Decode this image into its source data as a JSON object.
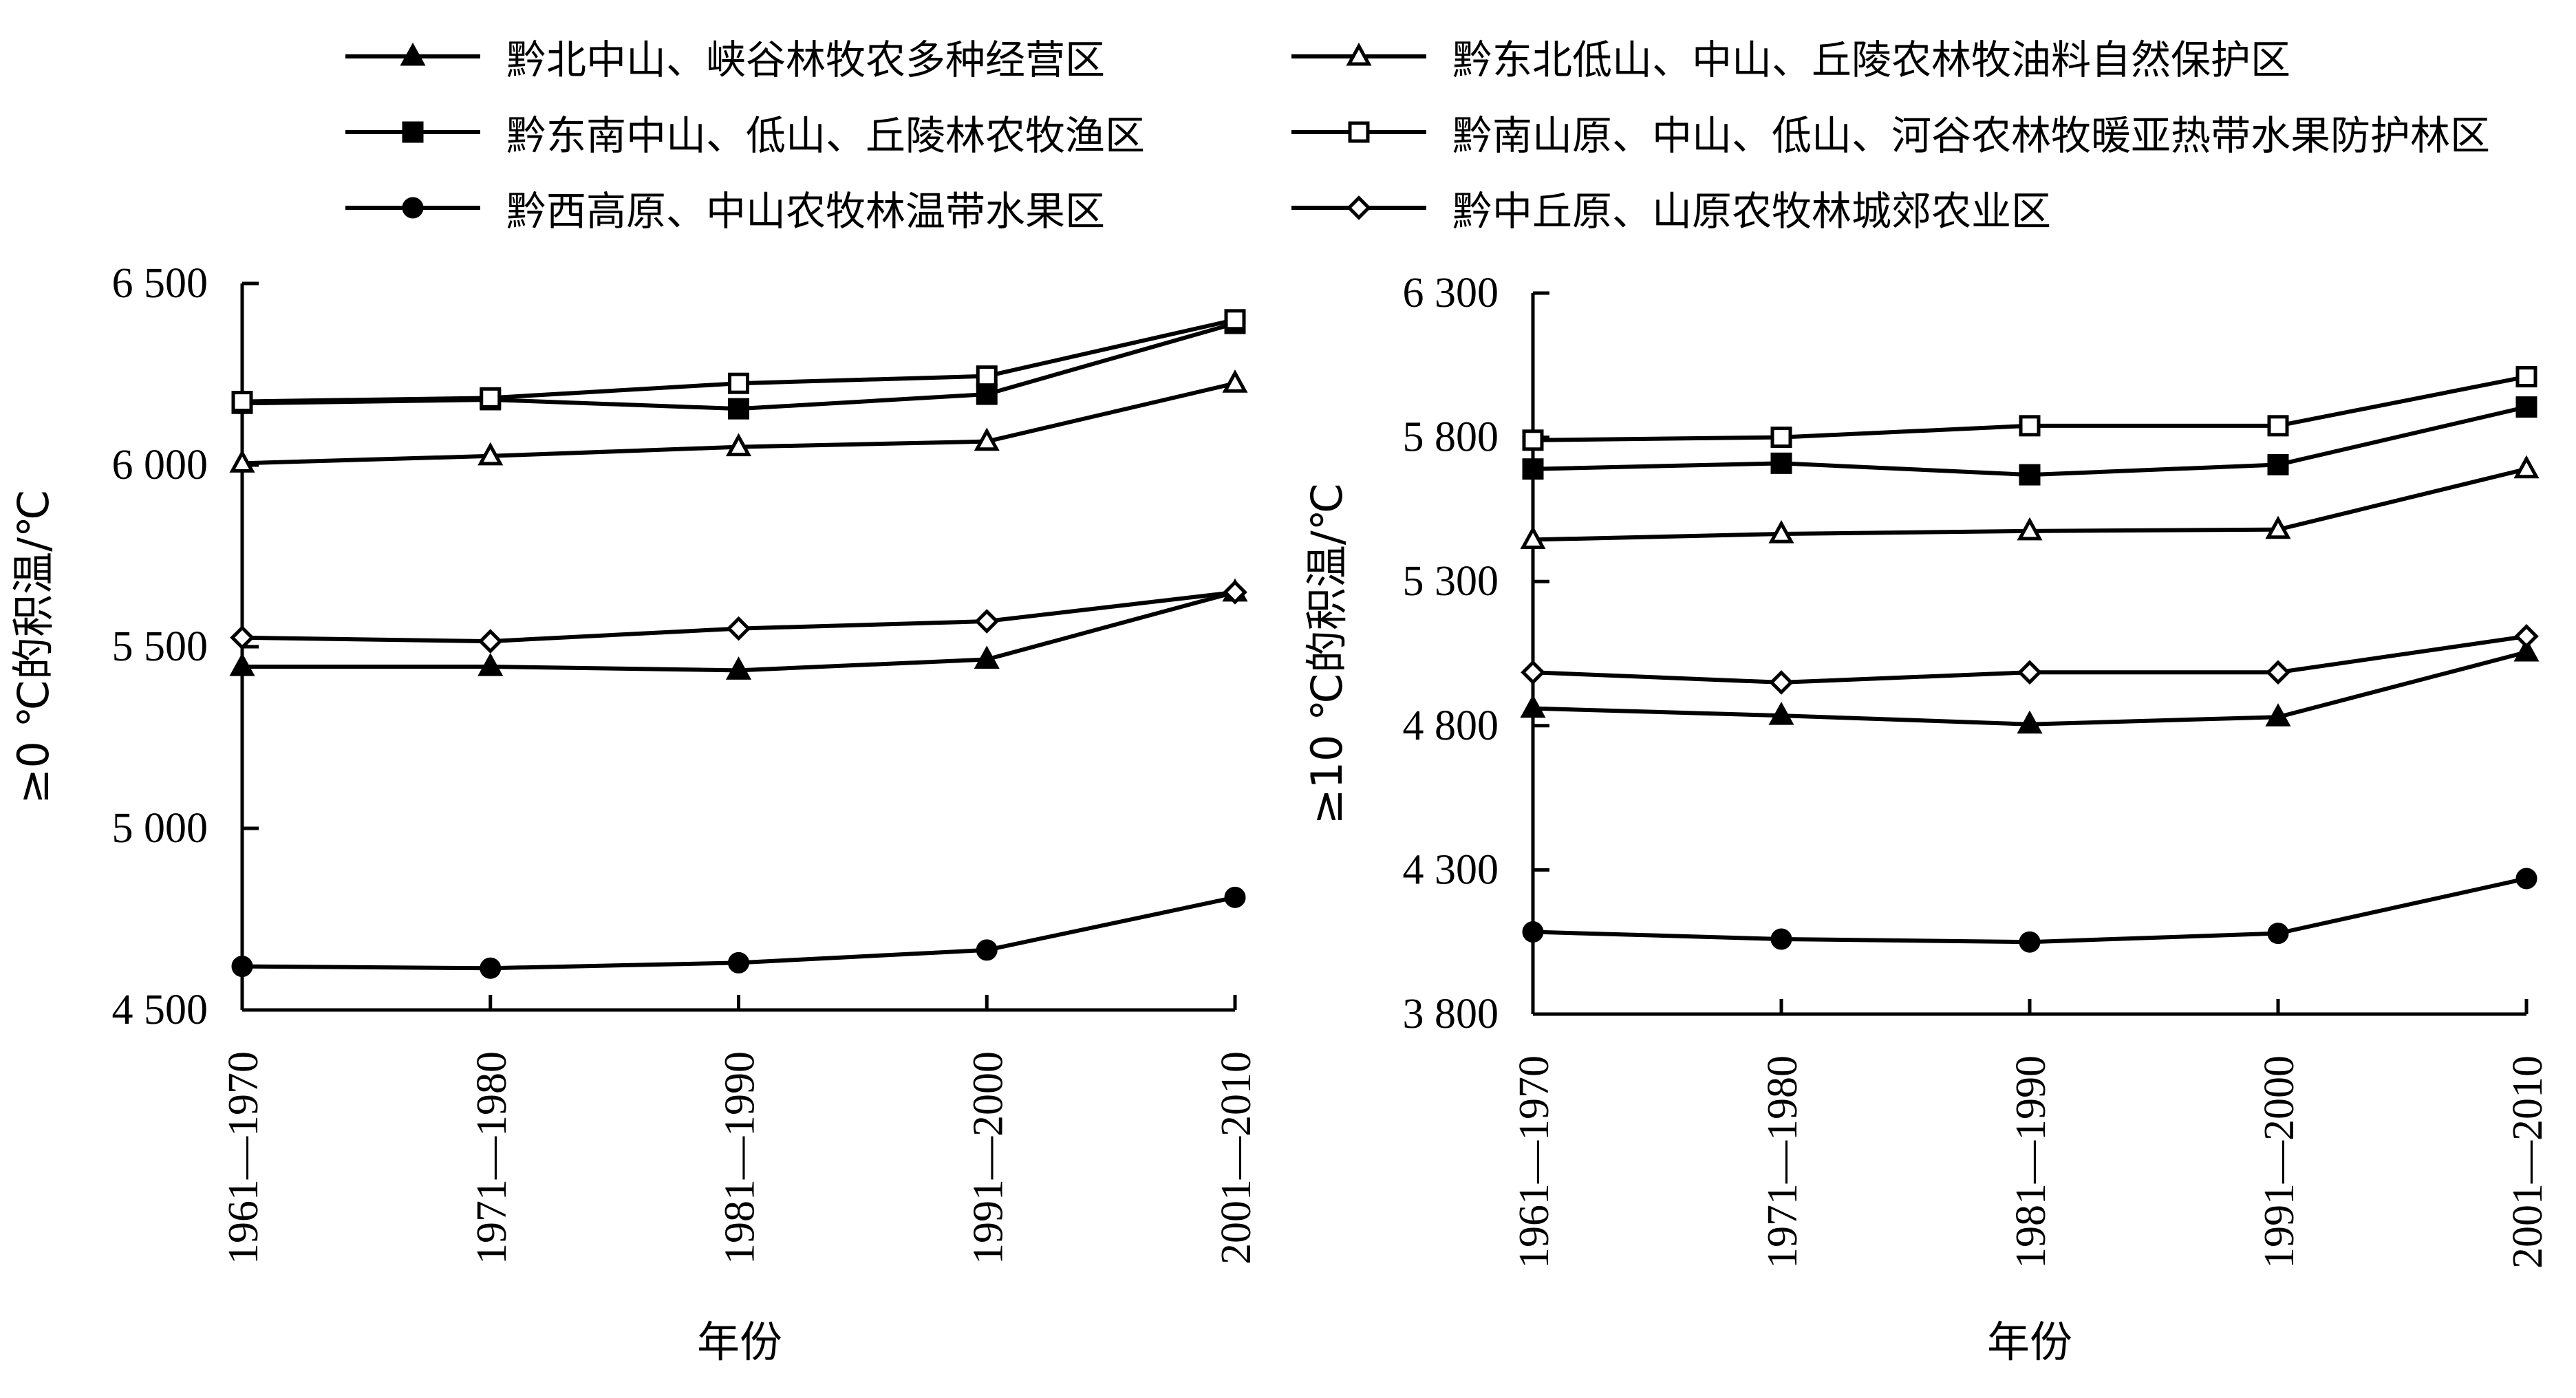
{
  "legend": [
    {
      "name": "黔北中山、峡谷林牧农多种经营区",
      "marker": "filled-triangle"
    },
    {
      "name": "黔东北低山、中山、丘陵农林牧油料自然保护区",
      "marker": "open-triangle"
    },
    {
      "name": "黔东南中山、低山、丘陵林农牧渔区",
      "marker": "filled-square"
    },
    {
      "name": "黔南山原、中山、低山、河谷农林牧暖亚热带水果防护林区",
      "marker": "open-square"
    },
    {
      "name": "黔西高原、中山农牧林温带水果区",
      "marker": "filled-circle"
    },
    {
      "name": "黔中丘原、山原农牧林城郊农业区",
      "marker": "open-diamond"
    }
  ],
  "chart_data": [
    {
      "type": "line",
      "categories": [
        "1961—1970",
        "1971—1980",
        "1981—1990",
        "1991—2000",
        "2001—2010"
      ],
      "ylabel": "≥0 ℃的积温/℃",
      "xlabel": "年份",
      "ylim": [
        4500,
        6500
      ],
      "yticks": [
        4500,
        5000,
        5500,
        6000,
        6500
      ],
      "ytick_labels": [
        "4 500",
        "5 000",
        "5 500",
        "6 000",
        "6 500"
      ],
      "grid": false,
      "series": [
        {
          "name": "黔北中山、峡谷林牧农多种经营区",
          "values": [
            5445,
            5445,
            5435,
            5465,
            5650
          ]
        },
        {
          "name": "黔东北低山、中山、丘陵农林牧油料自然保护区",
          "values": [
            6005,
            6025,
            6050,
            6065,
            6225
          ]
        },
        {
          "name": "黔东南中山、低山、丘陵林农牧渔区",
          "values": [
            6170,
            6180,
            6155,
            6195,
            6390
          ]
        },
        {
          "name": "黔南山原、中山、低山、河谷农林牧暖亚热带水果防护林区",
          "values": [
            6175,
            6185,
            6225,
            6245,
            6400
          ]
        },
        {
          "name": "黔西高原、中山农牧林温带水果区",
          "values": [
            4620,
            4615,
            4630,
            4665,
            4810
          ]
        },
        {
          "name": "黔中丘原、山原农牧林城郊农业区",
          "values": [
            5525,
            5515,
            5550,
            5570,
            5650
          ]
        }
      ]
    },
    {
      "type": "line",
      "categories": [
        "1961—1970",
        "1971—1980",
        "1981—1990",
        "1991—2000",
        "2001—2010"
      ],
      "ylabel": "≥10 ℃的积温/℃",
      "xlabel": "年份",
      "ylim": [
        3800,
        6300
      ],
      "yticks": [
        3800,
        4300,
        4800,
        5300,
        5800,
        6300
      ],
      "ytick_labels": [
        "3 800",
        "4 300",
        "4 800",
        "5 300",
        "5 800",
        "6 300"
      ],
      "grid": false,
      "series": [
        {
          "name": "黔北中山、峡谷林牧农多种经营区",
          "values": [
            4860,
            4835,
            4805,
            4830,
            5055
          ]
        },
        {
          "name": "黔东北低山、中山、丘陵农林牧油料自然保护区",
          "values": [
            5445,
            5465,
            5475,
            5480,
            5690
          ]
        },
        {
          "name": "黔东南中山、低山、丘陵林农牧渔区",
          "values": [
            5690,
            5710,
            5670,
            5705,
            5905
          ]
        },
        {
          "name": "黔南山原、中山、低山、河谷农林牧暖亚热带水果防护林区",
          "values": [
            5790,
            5800,
            5840,
            5840,
            6010
          ]
        },
        {
          "name": "黔西高原、中山农牧林温带水果区",
          "values": [
            4085,
            4060,
            4050,
            4080,
            4270
          ]
        },
        {
          "name": "黔中丘原、山原农牧林城郊农业区",
          "values": [
            4985,
            4950,
            4985,
            4985,
            5110
          ]
        }
      ]
    }
  ]
}
